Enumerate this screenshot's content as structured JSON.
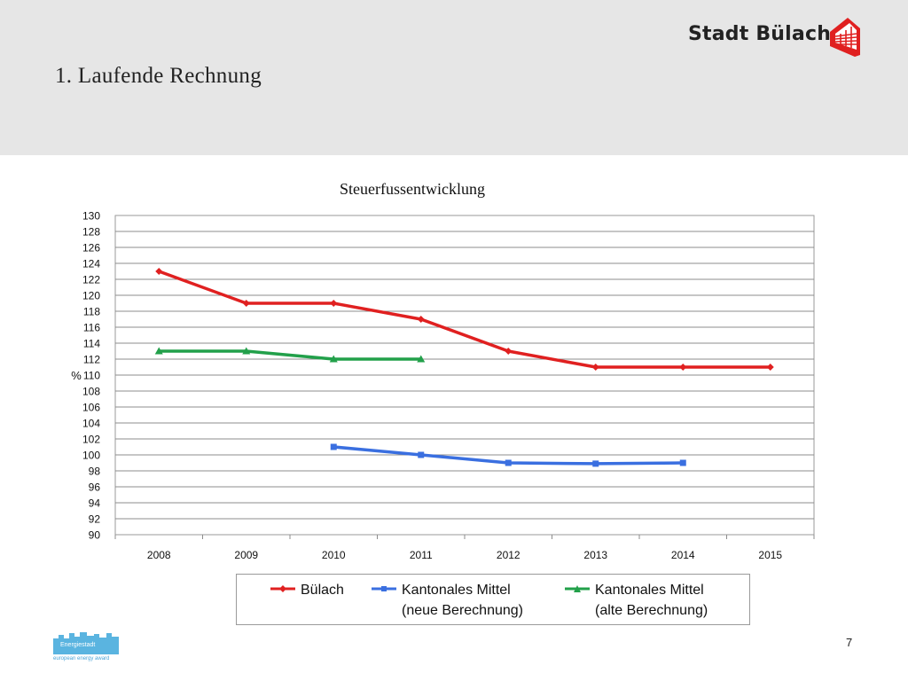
{
  "header": {
    "slide_title": "1. Laufende Rechnung",
    "brand": "Stadt Bülach"
  },
  "footer": {
    "page_number": "7",
    "logo_text": "Energiestadt",
    "logo_subtext": "european energy award"
  },
  "chart_data": {
    "type": "line",
    "title": "Steuerfussentwicklung",
    "ylabel": "%",
    "xlabel": "",
    "categories": [
      "2008",
      "2009",
      "2010",
      "2011",
      "2012",
      "2013",
      "2014",
      "2015"
    ],
    "ylim": [
      90,
      130
    ],
    "ytick_step": 2,
    "grid": true,
    "legend_position": "bottom",
    "series": [
      {
        "name": "Bülach",
        "legend_lines": [
          "Bülach"
        ],
        "color": "#e02020",
        "marker": "diamond",
        "values": [
          123,
          119,
          119,
          117,
          113,
          111,
          111,
          111
        ]
      },
      {
        "name": "Kantonales Mittel (neue Berechnung)",
        "legend_lines": [
          "Kantonales Mittel",
          "(neue Berechnung)"
        ],
        "color": "#3a6fe0",
        "marker": "square",
        "values": [
          null,
          null,
          101,
          100,
          99,
          98.9,
          99,
          null
        ]
      },
      {
        "name": "Kantonales Mittel (alte Berechnung)",
        "legend_lines": [
          "Kantonales Mittel",
          "(alte Berechnung)"
        ],
        "color": "#22a04a",
        "marker": "triangle",
        "values": [
          113,
          113,
          112,
          112,
          null,
          null,
          null,
          null
        ]
      }
    ]
  }
}
